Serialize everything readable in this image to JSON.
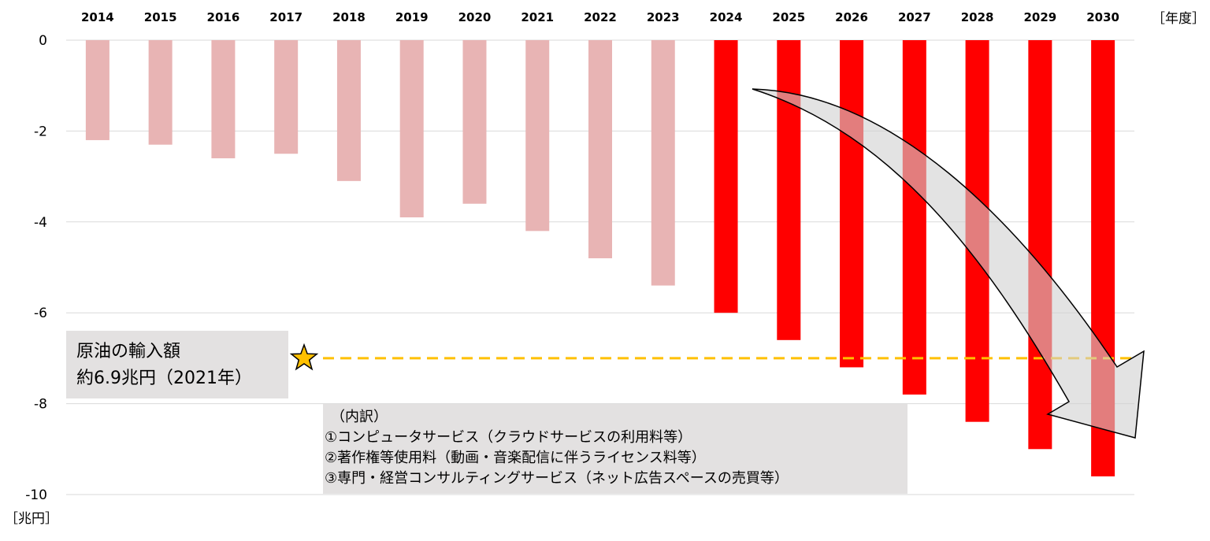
{
  "chart_data": {
    "type": "bar",
    "x_unit_label": "［年度］",
    "y_unit_label": "［兆円］",
    "categories": [
      "2014",
      "2015",
      "2016",
      "2017",
      "2018",
      "2019",
      "2020",
      "2021",
      "2022",
      "2023",
      "2024",
      "2025",
      "2026",
      "2027",
      "2028",
      "2029",
      "2030"
    ],
    "values": [
      -2.2,
      -2.3,
      -2.6,
      -2.5,
      -3.1,
      -3.9,
      -3.6,
      -4.2,
      -4.8,
      -5.4,
      -6.0,
      -6.6,
      -7.2,
      -7.8,
      -8.4,
      -9.0,
      -9.6
    ],
    "ylim": [
      -10,
      0
    ],
    "yticks": [
      0,
      -2,
      -4,
      -6,
      -8,
      -10
    ],
    "grid": true,
    "colors": {
      "actual": "#e8b4b4",
      "projection": "#ff0000",
      "reference_line": "#ffc000",
      "arrow_fill": "#d0d0d0"
    },
    "projection_start_index": 10,
    "reference_line": {
      "value": -7.0,
      "label_lines": [
        "原油の輸入額",
        "約6.9兆円（2021年）"
      ]
    },
    "note_lines": [
      "（内訳）",
      "①コンピュータサービス（クラウドサービスの利用料等）",
      "②著作権等使用料（動画・音楽配信に伴うライセンス料等）",
      "③専門・経営コンサルティングサービス（ネット広告スペースの売買等）"
    ]
  }
}
